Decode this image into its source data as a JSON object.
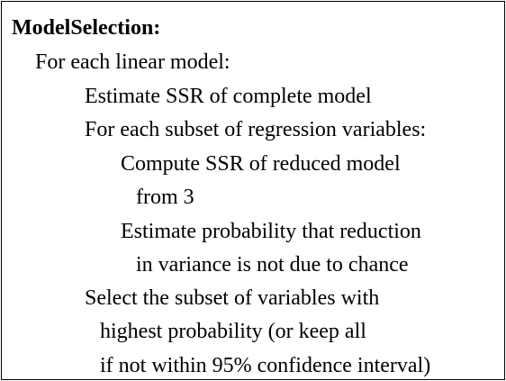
{
  "title": "ModelSelection:",
  "lines": [
    "For each linear model:",
    "Estimate SSR of complete model",
    "For each subset of regression variables:",
    "Compute SSR of reduced model",
    "from 3",
    "Estimate probability that reduction",
    "in variance is not due to chance",
    "Select the subset of variables with",
    "highest probability (or keep all",
    "if not within 95% confidence interval)"
  ]
}
